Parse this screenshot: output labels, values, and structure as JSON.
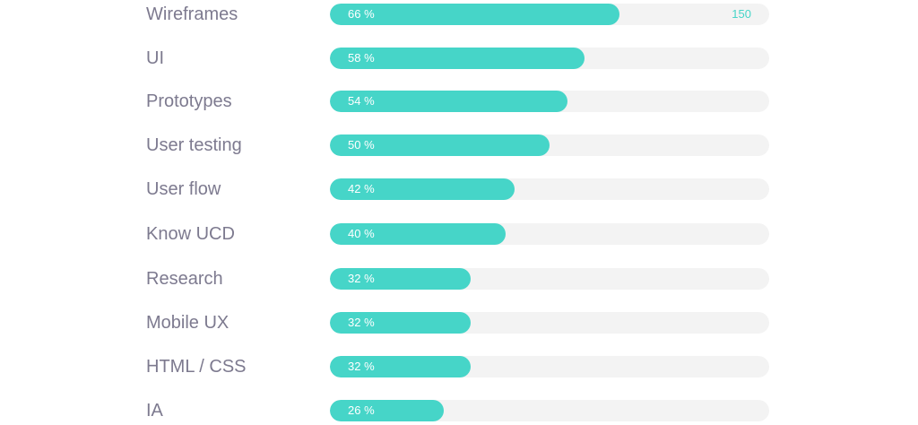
{
  "chart_data": {
    "type": "bar",
    "orientation": "horizontal",
    "categories": [
      "Wireframes",
      "UI",
      "Prototypes",
      "User testing",
      "User flow",
      "Know UCD",
      "Research",
      "Mobile UX",
      "HTML / CSS",
      "IA"
    ],
    "values": [
      66,
      58,
      54,
      50,
      42,
      40,
      32,
      32,
      32,
      26
    ],
    "value_labels": [
      "66 %",
      "58 %",
      "54 %",
      "50 %",
      "42 %",
      "40 %",
      "32 %",
      "32 %",
      "32 %",
      "26 %"
    ],
    "annotation": "150",
    "xlim": [
      0,
      100
    ],
    "grid": false,
    "legend": "none",
    "colors": {
      "bar": "#46d5c8",
      "track": "#f3f3f3",
      "label": "#7d7a8f",
      "value_text": "#ffffff",
      "annotation_text": "#46d5c8"
    }
  }
}
